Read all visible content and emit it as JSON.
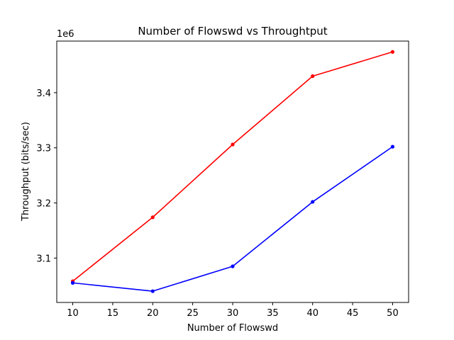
{
  "chart_data": {
    "type": "line",
    "title": "Number of Flowswd vs Throughtput",
    "xlabel": "Number of Flowswd",
    "ylabel": "Throughput (bits/sec)",
    "y_offset_label": "1e6",
    "xlim": [
      8,
      52
    ],
    "ylim": [
      3.0195,
      3.4936
    ],
    "x_ticks": [
      10,
      15,
      20,
      25,
      30,
      35,
      40,
      45,
      50
    ],
    "y_ticks": [
      3.1,
      3.2,
      3.3,
      3.4
    ],
    "y_tick_labels": [
      "3.1",
      "3.2",
      "3.3",
      "3.4"
    ],
    "grid": false,
    "x": [
      10,
      20,
      30,
      40,
      50
    ],
    "series": [
      {
        "color": "#ff0000",
        "values": [
          3.058,
          3.174,
          3.306,
          3.43,
          3.474
        ]
      },
      {
        "color": "#0000ff",
        "values": [
          3.055,
          3.04,
          3.085,
          3.202,
          3.302
        ]
      }
    ]
  }
}
